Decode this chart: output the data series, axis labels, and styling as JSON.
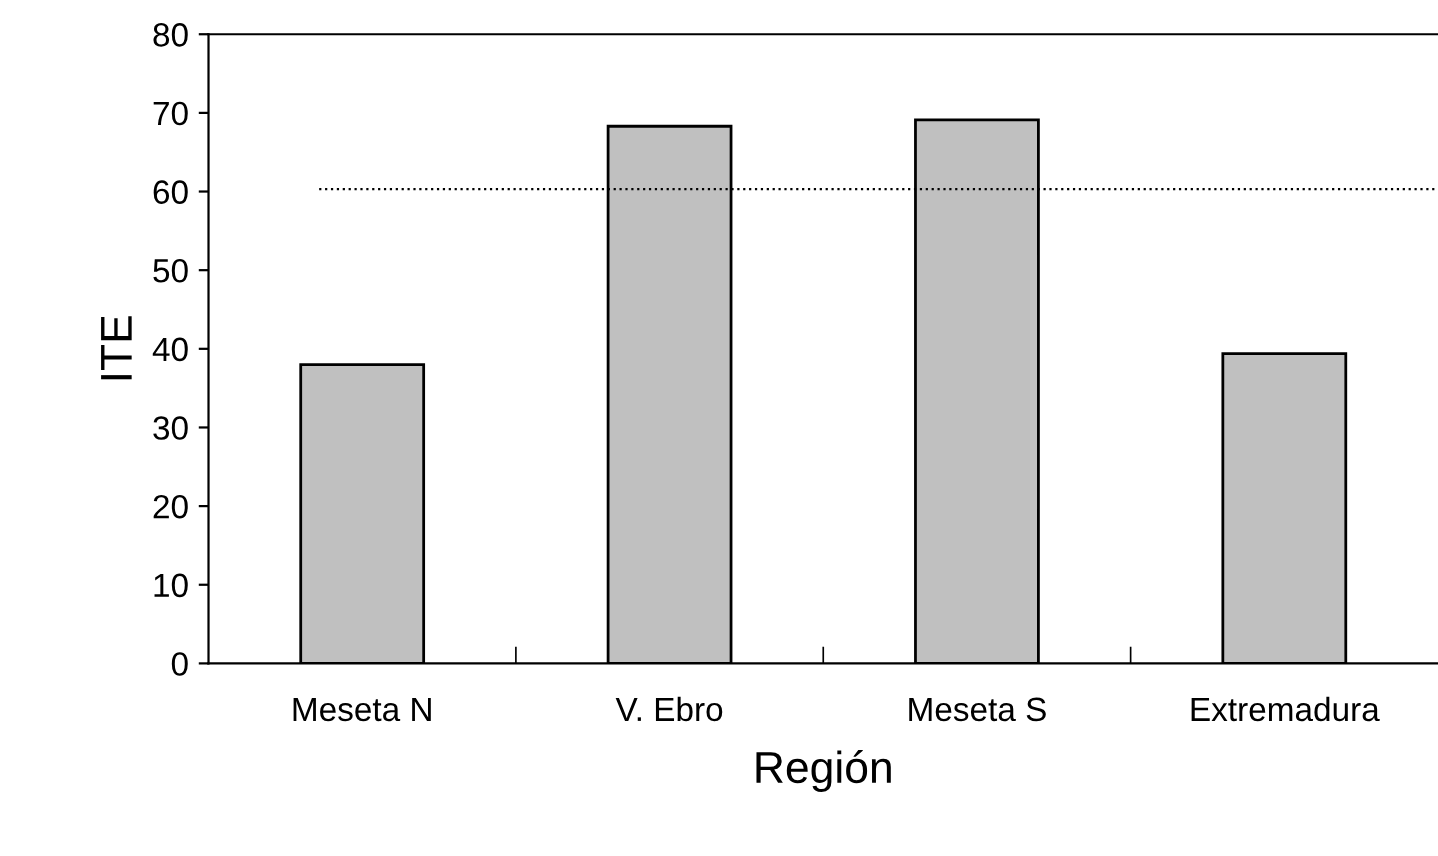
{
  "chart_data": {
    "type": "bar",
    "xlabel": "Región",
    "ylabel": "ITE",
    "categories": [
      "Meseta N",
      "V. Ebro",
      "Meseta S",
      "Extremadura"
    ],
    "values": [
      38,
      68.3,
      69.1,
      39.4
    ],
    "color": "#c0c0c0",
    "ylim": [
      0,
      80
    ],
    "yticks": [
      0,
      10,
      20,
      30,
      40,
      50,
      60,
      70,
      80
    ],
    "grid": false,
    "ref_lines": [
      {
        "axis": "y",
        "value": 60.3,
        "color": "#000000",
        "line_style": "dotted"
      }
    ]
  }
}
